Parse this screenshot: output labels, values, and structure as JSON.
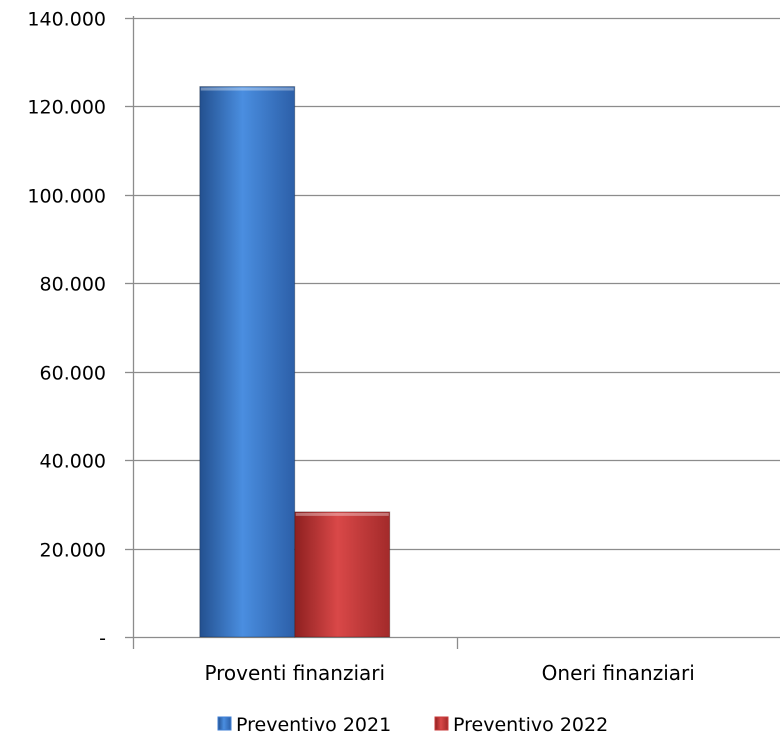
{
  "chart_data": {
    "type": "bar",
    "categories": [
      "Proventi finanziari",
      "Oneri finanziari"
    ],
    "series": [
      {
        "name": "Preventivo 2021",
        "values": [
          124500,
          0
        ],
        "color": "#3f7fd4"
      },
      {
        "name": "Preventivo 2022",
        "values": [
          28300,
          0
        ],
        "color": "#c83a3a"
      }
    ],
    "ylim": [
      0,
      140000
    ],
    "y_ticks": [
      0,
      20000,
      40000,
      60000,
      80000,
      100000,
      120000,
      140000
    ],
    "y_tick_labels": [
      "-",
      "20.000",
      "40.000",
      "60.000",
      "80.000",
      "100.000",
      "120.000",
      "140.000"
    ],
    "grid": true,
    "legend_position": "bottom"
  }
}
